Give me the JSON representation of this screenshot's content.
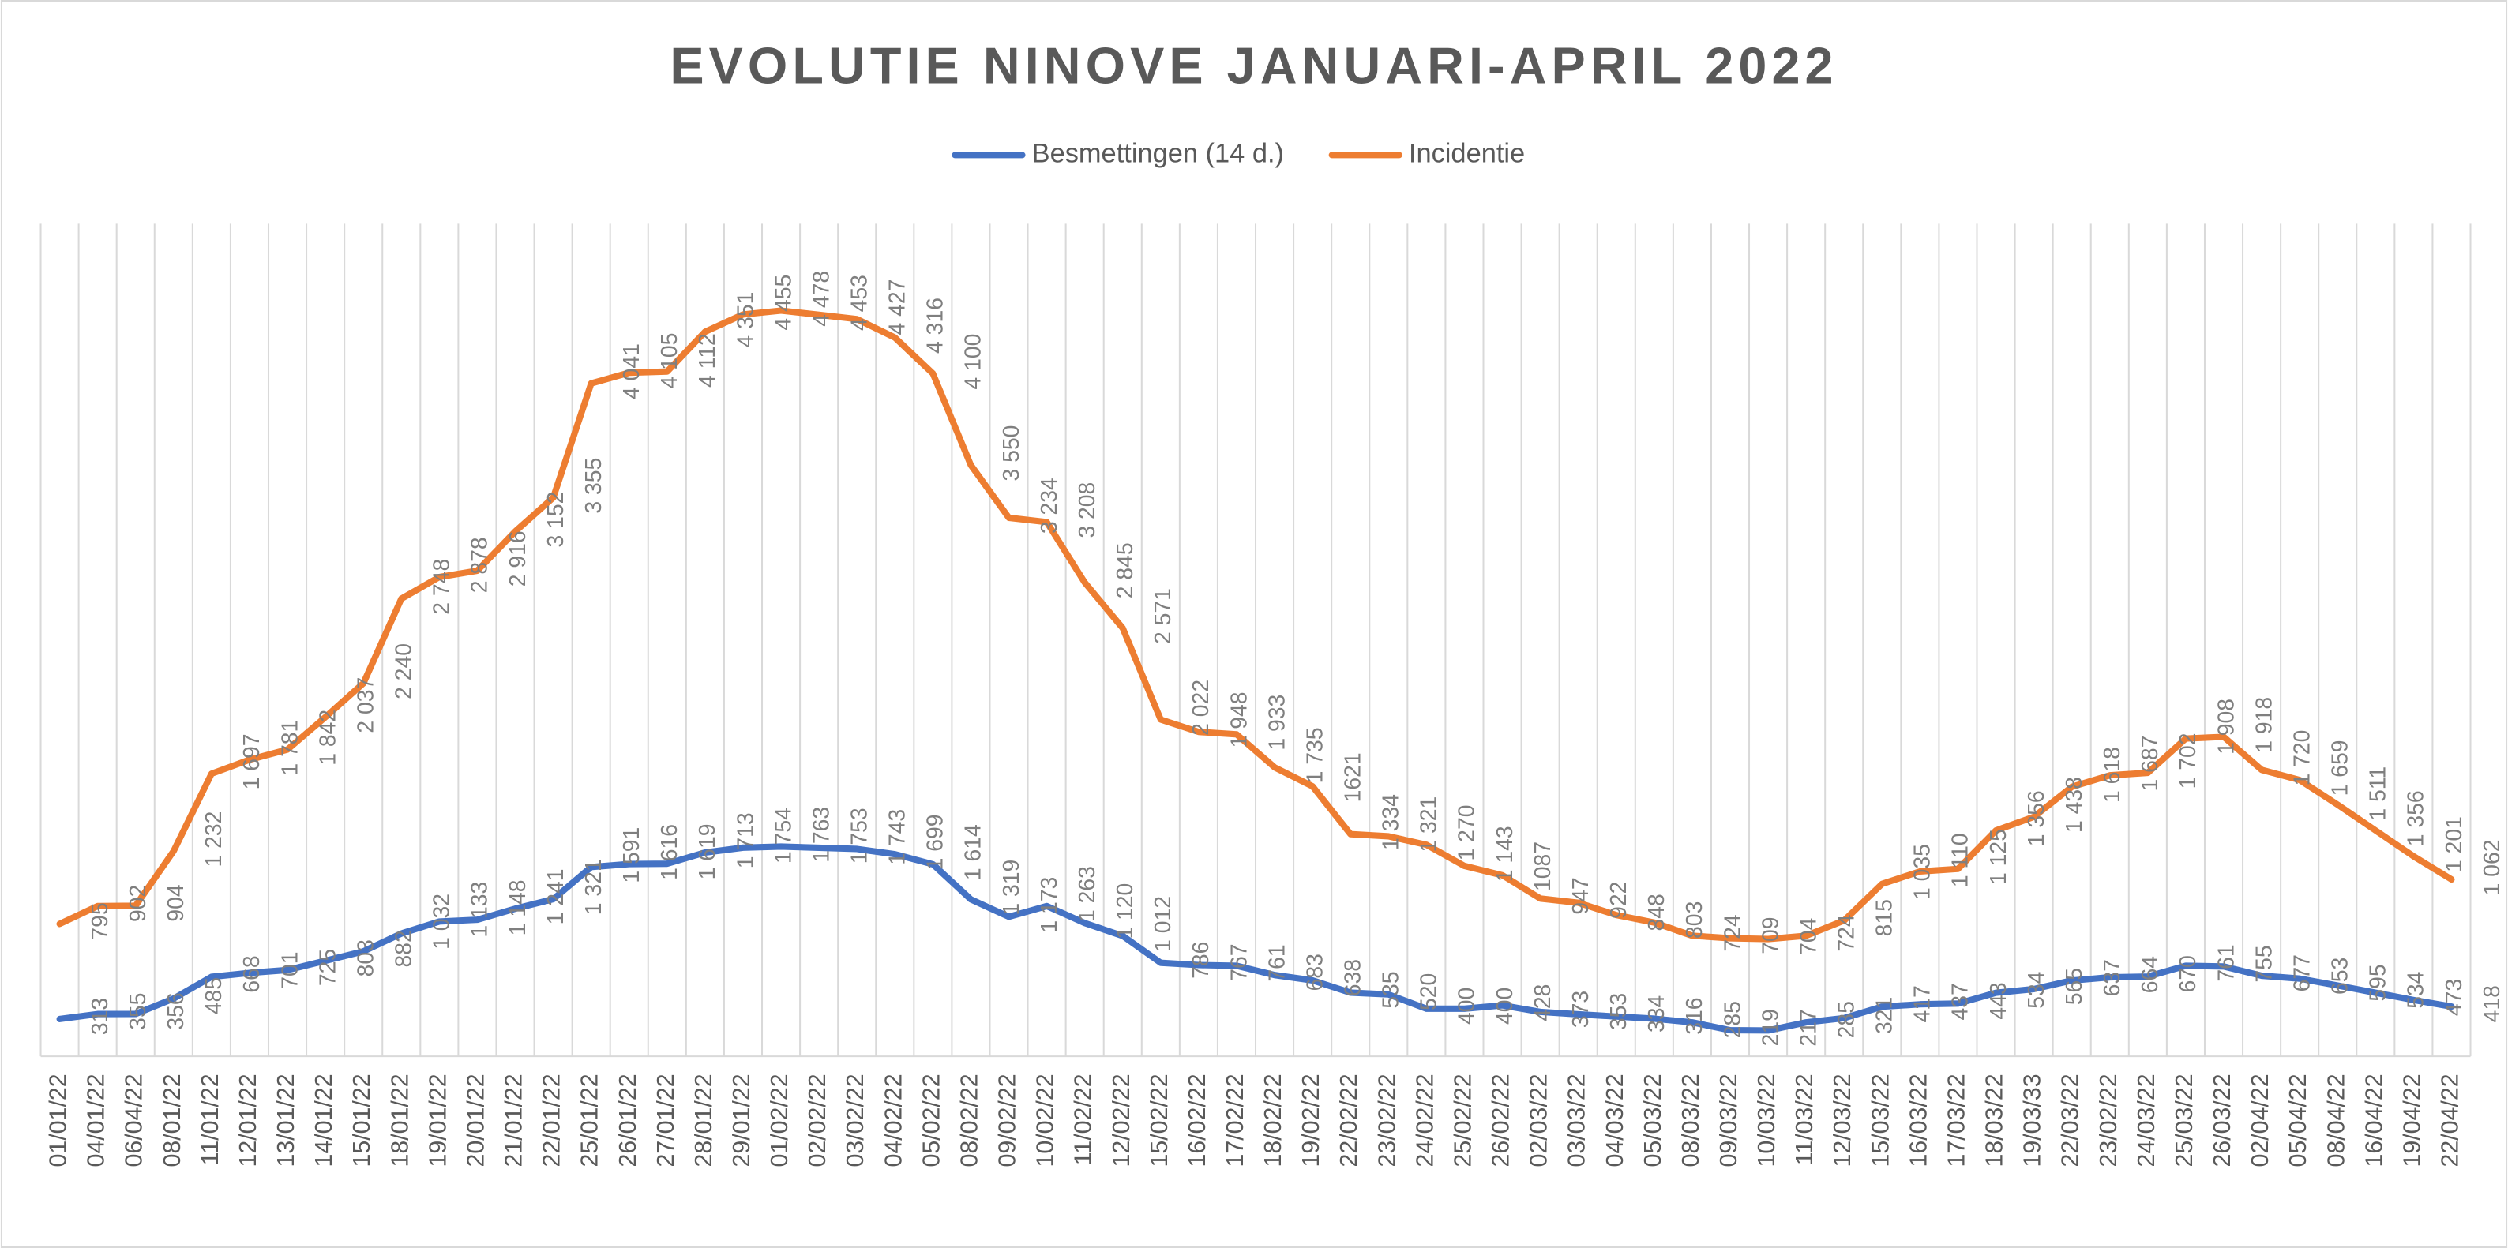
{
  "chart_data": {
    "type": "line",
    "title": "EVOLUTIE NINOVE JANUARI-APRIL 2022",
    "categories": [
      "01/01/22",
      "04/01/22",
      "06/04/22",
      "08/01/22",
      "11/01/22",
      "12/01/22",
      "13/01/22",
      "14/01/22",
      "15/01/22",
      "18/01/22",
      "19/01/22",
      "20/01/22",
      "21/01/22",
      "22/01/22",
      "25/01/22",
      "26/01/22",
      "27/01/22",
      "28/01/22",
      "29/01/22",
      "01/02/22",
      "02/02/22",
      "03/02/22",
      "04/02/22",
      "05/02/22",
      "08/02/22",
      "09/02/22",
      "10/02/22",
      "11/02/22",
      "12/02/22",
      "15/02/22",
      "16/02/22",
      "17/02/22",
      "18/02/22",
      "19/02/22",
      "22/02/22",
      "23/02/22",
      "24/02/22",
      "25/02/22",
      "26/02/22",
      "02/03/22",
      "03/03/22",
      "04/03/22",
      "05/03/22",
      "08/03/22",
      "09/03/22",
      "10/03/22",
      "11/03/22",
      "12/03/22",
      "15/03/22",
      "16/03/22",
      "17/03/22",
      "18/03/22",
      "19/03/33",
      "22/03/22",
      "23/02/22",
      "24/03/22",
      "25/03/22",
      "26/03/22",
      "02/04/22",
      "05/04/22",
      "08/04/22",
      "16/04/22",
      "19/04/22",
      "22/04/22"
    ],
    "series": [
      {
        "name": "Besmettingen (14 d.)",
        "color": "#4472c4",
        "axis": "y2",
        "values": [
          313,
          355,
          356,
          485,
          668,
          701,
          725,
          803,
          882,
          1032,
          1133,
          1148,
          1241,
          1321,
          1591,
          1616,
          1619,
          1713,
          1754,
          1763,
          1753,
          1743,
          1699,
          1614,
          1319,
          1173,
          1263,
          1120,
          1012,
          786,
          767,
          761,
          683,
          638,
          535,
          520,
          400,
          400,
          428,
          373,
          353,
          334,
          316,
          285,
          219,
          217,
          285,
          321,
          417,
          437,
          443,
          534,
          565,
          637,
          664,
          670,
          761,
          755,
          677,
          653,
          595,
          534,
          473,
          418
        ],
        "value_labels": [
          "313",
          "355",
          "356",
          "485",
          "668",
          "701",
          "725",
          "803",
          "882",
          "1 032",
          "1 133",
          "1 148",
          "1 241",
          "1 321",
          "1 591",
          "1 616",
          "1 619",
          "1 713",
          "1 754",
          "1 763",
          "1 753",
          "1 743",
          "1 699",
          "1 614",
          "1 319",
          "1 173",
          "1 263",
          "1 120",
          "1 012",
          "786",
          "767",
          "761",
          "683",
          "638",
          "535",
          "520",
          "400",
          "400",
          "428",
          "373",
          "353",
          "334",
          "316",
          "285",
          "219",
          "217",
          "285",
          "321",
          "417",
          "437",
          "443",
          "534",
          "565",
          "637",
          "664",
          "670",
          "761",
          "755",
          "677",
          "653",
          "595",
          "534",
          "473",
          "418"
        ]
      },
      {
        "name": "Incidentie",
        "color": "#ed7d31",
        "values": [
          795,
          902,
          904,
          1232,
          1697,
          1781,
          1842,
          2037,
          2240,
          2748,
          2878,
          2916,
          3152,
          3355,
          4041,
          4105,
          4112,
          4351,
          4455,
          4478,
          4453,
          4427,
          4316,
          4100,
          3550,
          3234,
          3208,
          2845,
          2571,
          2022,
          1948,
          1933,
          1735,
          1621,
          1334,
          1321,
          1270,
          1143,
          1087,
          947,
          922,
          848,
          803,
          724,
          709,
          704,
          724,
          815,
          1035,
          1110,
          1125,
          1356,
          1438,
          1618,
          1687,
          1702,
          1908,
          1918,
          1720,
          1659,
          1511,
          1356,
          1201,
          1062
        ],
        "value_labels": [
          "795",
          "902",
          "904",
          "1 232",
          "1 697",
          "1 781",
          "1 842",
          "2 037",
          "2 240",
          "2 748",
          "2 878",
          "2 916",
          "3 152",
          "3 355",
          "4 041",
          "4 105",
          "4 112",
          "4 351",
          "4 455",
          "4 478",
          "4 453",
          "4 427",
          "4 316",
          "4 100",
          "3 550",
          "3 234",
          "3 208",
          "2 845",
          "2 571",
          "2 022",
          "1 948",
          "1 933",
          "1 735",
          "1621",
          "1 334",
          "1 321",
          "1 270",
          "1 143",
          "1087",
          "947",
          "922",
          "848",
          "803",
          "724",
          "709",
          "704",
          "724",
          "815",
          "1 035",
          "1 110",
          "1 125",
          "1 356",
          "1 438",
          "1 618",
          "1 687",
          "1 702",
          "1 908",
          "1 918",
          "1 720",
          "1 659",
          "1 511",
          "1 356",
          "1 201",
          "1 062"
        ]
      }
    ],
    "ylim": [
      0,
      5000
    ],
    "y2lim": [
      0,
      7000
    ],
    "grid": true,
    "legend": "top"
  }
}
